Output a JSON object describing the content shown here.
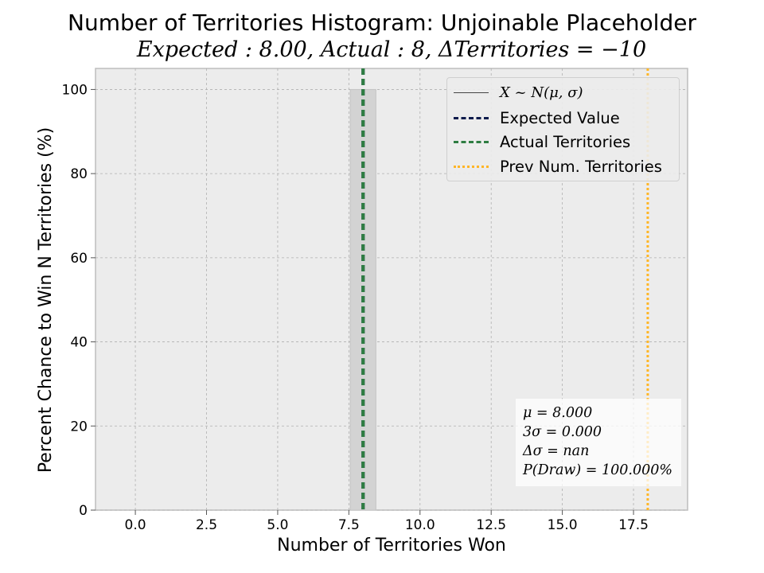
{
  "chart_data": {
    "type": "bar",
    "title": "Number of Territories Histogram: Unjoinable Placeholder",
    "subtitle": "Expected : 8.00, Actual : 8, ΔTerritories = −10",
    "xlabel": "Number of Territories Won",
    "ylabel": "Percent Chance to Win N Territories (%)",
    "xlim": [
      -1.4,
      19.4
    ],
    "ylim": [
      0,
      105
    ],
    "xticks": [
      0.0,
      2.5,
      5.0,
      7.5,
      10.0,
      12.5,
      15.0,
      17.5
    ],
    "xtick_labels": [
      "0.0",
      "2.5",
      "5.0",
      "7.5",
      "10.0",
      "12.5",
      "15.0",
      "17.5"
    ],
    "yticks": [
      0,
      20,
      40,
      60,
      80,
      100
    ],
    "ytick_labels": [
      "0",
      "20",
      "40",
      "60",
      "80",
      "100"
    ],
    "grid": true,
    "bars": [
      {
        "x": 8,
        "width": 0.9,
        "value": 100.0
      }
    ],
    "vlines": [
      {
        "name": "Expected Value",
        "x": 8.0,
        "color": "#0d1b4c",
        "style": "dashed"
      },
      {
        "name": "Actual Territories",
        "x": 8,
        "color": "#2e7d42",
        "style": "dashed"
      },
      {
        "name": "Prev Num. Territories",
        "x": 18,
        "color": "#ffb627",
        "style": "dotted"
      }
    ],
    "legend": {
      "position": "upper right",
      "entries": [
        {
          "label": "X ~ N(μ, σ)",
          "color": "#444444",
          "style": "thin-solid",
          "math": true
        },
        {
          "label": "Expected Value",
          "color": "#0d1b4c",
          "style": "dashed"
        },
        {
          "label": "Actual Territories",
          "color": "#2e7d42",
          "style": "dashed"
        },
        {
          "label": "Prev Num. Territories",
          "color": "#ffb627",
          "style": "dotted"
        }
      ]
    },
    "stats_box": {
      "position": "lower right",
      "lines": [
        "μ = 8.000",
        "3σ = 0.000",
        "Δσ = nan",
        "P(Draw) = 100.000%"
      ]
    },
    "colors": {
      "axes_bg": "#ececec",
      "bar_fill": "#d3d3d3",
      "grid": "#b0b0b0"
    }
  }
}
